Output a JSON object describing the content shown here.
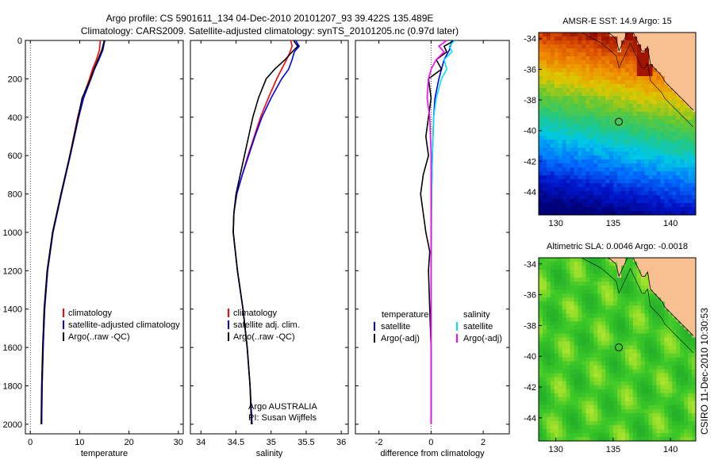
{
  "header": {
    "line1": "Argo profile: CS 5901611_134 04-Dec-2010 20101207_93 39.422S 135.489E",
    "line2": "Climatology: CARS2009. Satellite-adjusted climatology: synTS_20101205.nc (0.97d later)"
  },
  "side_label": "CSIRO 11-Dec-2010 10:30:53",
  "colors": {
    "climatology": "#ff0000",
    "satellite": "#0000ff",
    "argo": "#000000",
    "sal_satellite": "#00e0ff",
    "sal_argo": "#ff00ff",
    "land": "#f8c090"
  },
  "chart_data": [
    {
      "type": "line",
      "xlabel": "temperature",
      "ylabel": "",
      "xlim": [
        -1,
        31
      ],
      "ylim": [
        2050,
        0
      ],
      "xticks": [
        0,
        10,
        20,
        30
      ],
      "yticks": [
        0,
        200,
        400,
        600,
        800,
        1000,
        1200,
        1400,
        1600,
        1800,
        2000
      ],
      "legend": {
        "placement": "lower-middle",
        "entries": [
          "climatology",
          "satellite-adjusted climatology",
          "Argo(..raw -QC)"
        ]
      },
      "series": [
        {
          "name": "climatology",
          "color": "#ff0000",
          "depth": [
            0,
            50,
            100,
            150,
            200,
            300,
            400,
            600,
            800,
            1000,
            1200,
            1400,
            1600,
            1800,
            2000
          ],
          "values": [
            14.2,
            14.0,
            13.4,
            12.6,
            12.0,
            10.6,
            9.6,
            8.0,
            6.3,
            4.6,
            3.5,
            2.9,
            2.6,
            2.4,
            2.3
          ]
        },
        {
          "name": "satellite-adjusted climatology",
          "color": "#0000ff",
          "depth": [
            0,
            50,
            100,
            150,
            200,
            300,
            400,
            600,
            800,
            1000,
            1200,
            1400,
            1600,
            1800,
            2000
          ],
          "values": [
            15.1,
            14.7,
            13.9,
            13.0,
            12.3,
            10.8,
            9.8,
            8.1,
            6.3,
            4.6,
            3.5,
            2.9,
            2.6,
            2.4,
            2.3
          ]
        },
        {
          "name": "Argo(..raw -QC)",
          "color": "#000000",
          "depth": [
            0,
            50,
            100,
            150,
            200,
            300,
            400,
            600,
            800,
            1000,
            1200,
            1400,
            1600,
            1800,
            2000
          ],
          "values": [
            15.0,
            14.5,
            13.7,
            12.9,
            12.2,
            10.5,
            9.7,
            8.0,
            6.2,
            4.5,
            3.4,
            2.8,
            2.5,
            2.3,
            2.2
          ]
        }
      ]
    },
    {
      "type": "line",
      "xlabel": "salinity",
      "ylabel": "",
      "xlim": [
        33.85,
        36.1
      ],
      "ylim": [
        2050,
        0
      ],
      "xticks": [
        34,
        34.5,
        35,
        35.5,
        36
      ],
      "xticklabels": [
        "34",
        "34.5",
        "35",
        "35.5",
        "36"
      ],
      "legend": {
        "placement": "lower-middle",
        "entries": [
          "climatology",
          "satellite adj. clim.",
          "Argo(..raw -QC)"
        ]
      },
      "annotation": [
        "Argo AUSTRALIA",
        "PI: Susan Wijffels"
      ],
      "series": [
        {
          "name": "climatology",
          "color": "#ff0000",
          "depth": [
            0,
            30,
            60,
            100,
            150,
            200,
            300,
            400,
            500,
            600,
            700,
            800,
            900,
            1000,
            1200,
            1400,
            1600,
            1800,
            2000
          ],
          "values": [
            35.28,
            35.3,
            35.27,
            35.22,
            35.15,
            35.08,
            34.96,
            34.85,
            34.76,
            34.67,
            34.59,
            34.51,
            34.47,
            34.46,
            34.52,
            34.6,
            34.66,
            34.7,
            34.72
          ]
        },
        {
          "name": "satellite adj. clim.",
          "color": "#0000ff",
          "depth": [
            0,
            30,
            60,
            100,
            150,
            200,
            300,
            400,
            500,
            600,
            700,
            800,
            900,
            1000,
            1200,
            1400,
            1600,
            1800,
            2000
          ],
          "values": [
            35.35,
            35.4,
            35.33,
            35.3,
            35.25,
            35.15,
            35.0,
            34.87,
            34.77,
            34.68,
            34.59,
            34.51,
            34.47,
            34.46,
            34.52,
            34.6,
            34.66,
            34.7,
            34.73
          ]
        },
        {
          "name": "Argo(..raw -QC)",
          "color": "#000000",
          "depth": [
            0,
            30,
            60,
            100,
            150,
            200,
            300,
            400,
            500,
            600,
            700,
            800,
            900,
            1000,
            1200,
            1400,
            1600,
            1800,
            2000
          ],
          "values": [
            35.32,
            35.38,
            35.3,
            35.2,
            35.05,
            34.93,
            34.82,
            34.74,
            34.68,
            34.62,
            34.56,
            34.5,
            34.47,
            34.46,
            34.52,
            34.6,
            34.66,
            34.7,
            34.72
          ]
        }
      ]
    },
    {
      "type": "line",
      "xlabel": "difference from climatology",
      "ylabel": "",
      "xlim": [
        -2.9,
        3.0
      ],
      "ylim": [
        2050,
        0
      ],
      "xticks": [
        -2,
        0,
        2
      ],
      "legend": {
        "placement": "lower-middle",
        "groups": [
          {
            "title": "temperature",
            "entries": [
              "satellite",
              "Argo(-adj)"
            ]
          },
          {
            "title": "salinity",
            "entries": [
              "satellite",
              "Argo(-adj)"
            ]
          }
        ]
      },
      "series": [
        {
          "name": "temperature satellite",
          "color": "#0000ff",
          "depth": [
            0,
            50,
            100,
            150,
            200,
            300,
            400,
            600,
            800,
            1000,
            1200,
            1400,
            2000
          ],
          "values": [
            0.8,
            0.7,
            0.5,
            0.4,
            0.3,
            0.15,
            0.1,
            0.05,
            0.02,
            0.01,
            0.0,
            0.0,
            0.0
          ]
        },
        {
          "name": "temperature Argo(-adj)",
          "color": "#000000",
          "depth": [
            0,
            30,
            60,
            100,
            150,
            200,
            300,
            400,
            500,
            600,
            700,
            800,
            900,
            1000,
            1100,
            1200,
            1400,
            1600,
            1800,
            2000
          ],
          "values": [
            0.9,
            0.5,
            0.6,
            0.2,
            0.4,
            -0.1,
            0.0,
            -0.1,
            -0.2,
            -0.1,
            -0.3,
            -0.4,
            -0.3,
            -0.2,
            -0.05,
            -0.1,
            -0.05,
            0.0,
            0.0,
            0.0
          ]
        },
        {
          "name": "salinity satellite",
          "color": "#00e0ff",
          "depth": [
            0,
            30,
            60,
            100,
            150,
            200,
            300,
            400,
            600,
            800,
            1000,
            1200,
            1400,
            2000
          ],
          "values": [
            0.9,
            0.7,
            0.8,
            0.5,
            0.6,
            0.4,
            0.2,
            0.1,
            0.05,
            0.02,
            0.0,
            0.0,
            0.0,
            0.0
          ]
        },
        {
          "name": "salinity Argo(-adj)",
          "color": "#ff00ff",
          "depth": [
            0,
            30,
            60,
            100,
            150,
            200,
            300,
            400,
            600,
            800,
            1000,
            1200,
            1400,
            2000
          ],
          "values": [
            0.6,
            0.3,
            0.5,
            0.2,
            0.0,
            -0.1,
            -0.15,
            -0.05,
            0.0,
            0.0,
            0.0,
            0.0,
            0.0,
            0.0
          ]
        }
      ]
    },
    {
      "type": "heatmap",
      "title": "AMSR-E SST: 14.9 Argo: 15",
      "xlim": [
        128.5,
        142.2
      ],
      "ylim": [
        -45.5,
        -33.6
      ],
      "xticks": [
        130,
        135,
        140
      ],
      "yticks": [
        -34,
        -36,
        -38,
        -40,
        -42,
        -44
      ],
      "marker": {
        "lon": 135.489,
        "lat": -39.422
      },
      "colorscale": "sst"
    },
    {
      "type": "heatmap",
      "title": "Altimetric SLA: 0.0046 Argo: -0.0018",
      "xlim": [
        128.5,
        142.2
      ],
      "ylim": [
        -45.5,
        -33.6
      ],
      "xticks": [
        130,
        135,
        140
      ],
      "yticks": [
        -34,
        -36,
        -38,
        -40,
        -42,
        -44
      ],
      "marker": {
        "lon": 135.489,
        "lat": -39.422
      },
      "colorscale": "sla"
    }
  ]
}
